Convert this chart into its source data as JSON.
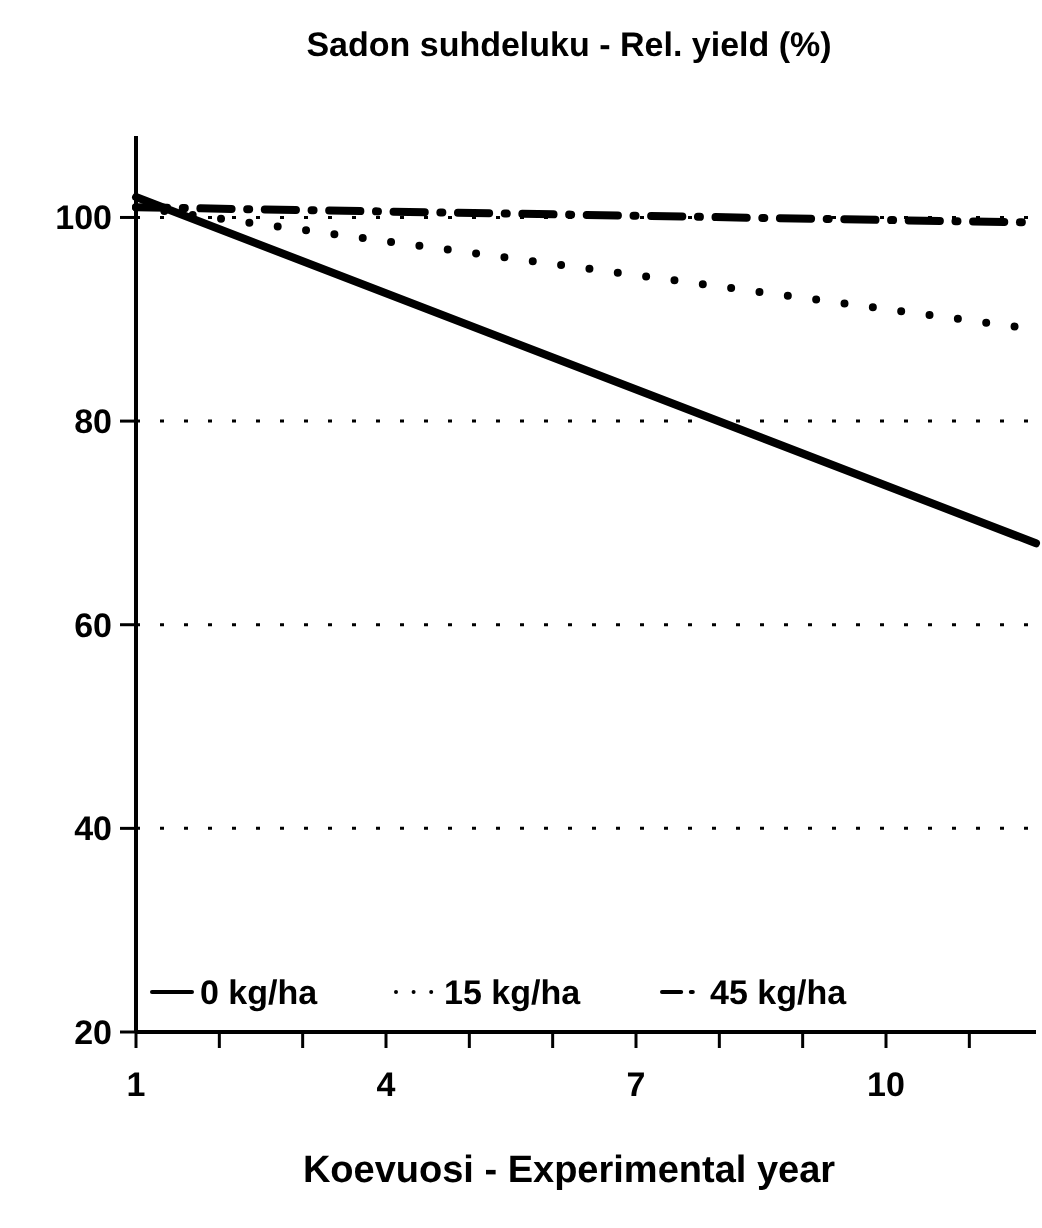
{
  "chart_data": {
    "type": "line",
    "title": "Sadon suhdeluku - Rel. yield (%)",
    "xlabel": "Koevuosi - Experimental year",
    "xlim": [
      1,
      11.8
    ],
    "xticks": [
      1,
      {
        "value": 2,
        "label": null
      },
      {
        "value": 3,
        "label": null
      },
      4,
      {
        "value": 5,
        "label": null
      },
      {
        "value": 6,
        "label": null
      },
      7,
      {
        "value": 8,
        "label": null
      },
      {
        "value": 9,
        "label": null
      },
      10,
      {
        "value": 11,
        "label": null
      }
    ],
    "ylim": [
      20,
      108
    ],
    "yticks": [
      20,
      40,
      60,
      80,
      100
    ],
    "grid": "y",
    "legend": "bottom",
    "x": [
      1,
      11.8
    ],
    "series": [
      {
        "name": "0 kg/ha",
        "color": "#000000",
        "values": [
          102,
          68
        ],
        "line_style": "solid"
      },
      {
        "name": "15 kg/ha",
        "color": "#000000",
        "values": [
          101,
          89
        ],
        "line_style": "dotted"
      },
      {
        "name": "45 kg/ha",
        "color": "#000000",
        "values": [
          101,
          99.5
        ],
        "line_style": "dashed"
      }
    ]
  }
}
